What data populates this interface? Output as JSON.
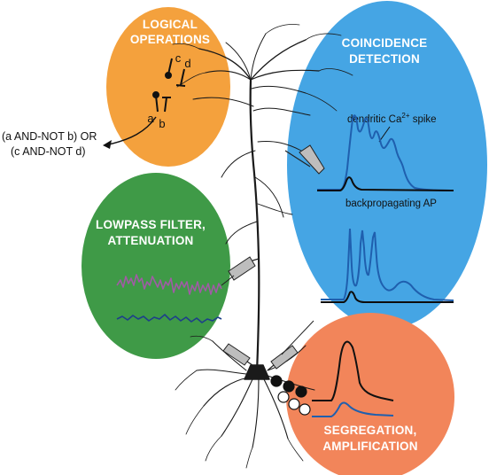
{
  "colors": {
    "logical": "#f4a13d",
    "coincidence": "#45a5e4",
    "lowpass": "#3f9a47",
    "segregation": "#f2855a",
    "neuron": "#1a1a1a",
    "trace_dark": "#0d0d0d",
    "trace_blue": "#1f5fae",
    "trace_purple": "#a05ba5",
    "trace_navy": "#1d3f8a"
  },
  "panels": {
    "logical": {
      "line1": "LOGICAL",
      "line2": "OPERATIONS"
    },
    "coincidence": {
      "line1": "COINCIDENCE",
      "line2": "DETECTION"
    },
    "lowpass": {
      "line1": "LOWPASS FILTER,",
      "line2": "ATTENUATION"
    },
    "segregation": {
      "line1": "SEGREGATION,",
      "line2": "AMPLIFICATION"
    }
  },
  "logic": {
    "inputs": [
      "a",
      "b",
      "c",
      "d"
    ],
    "expression_line1": "(a AND-NOT b) OR",
    "expression_line2": "(c AND-NOT d)"
  },
  "coincidence_labels": {
    "dendritic_spike_prefix": "dendritic Ca",
    "dendritic_spike_sup": "2+",
    "dendritic_spike_suffix": " spike",
    "backprop": "backpropagating AP"
  },
  "icons": [
    "electrode-icon",
    "synapse-icon",
    "arrow-icon"
  ]
}
